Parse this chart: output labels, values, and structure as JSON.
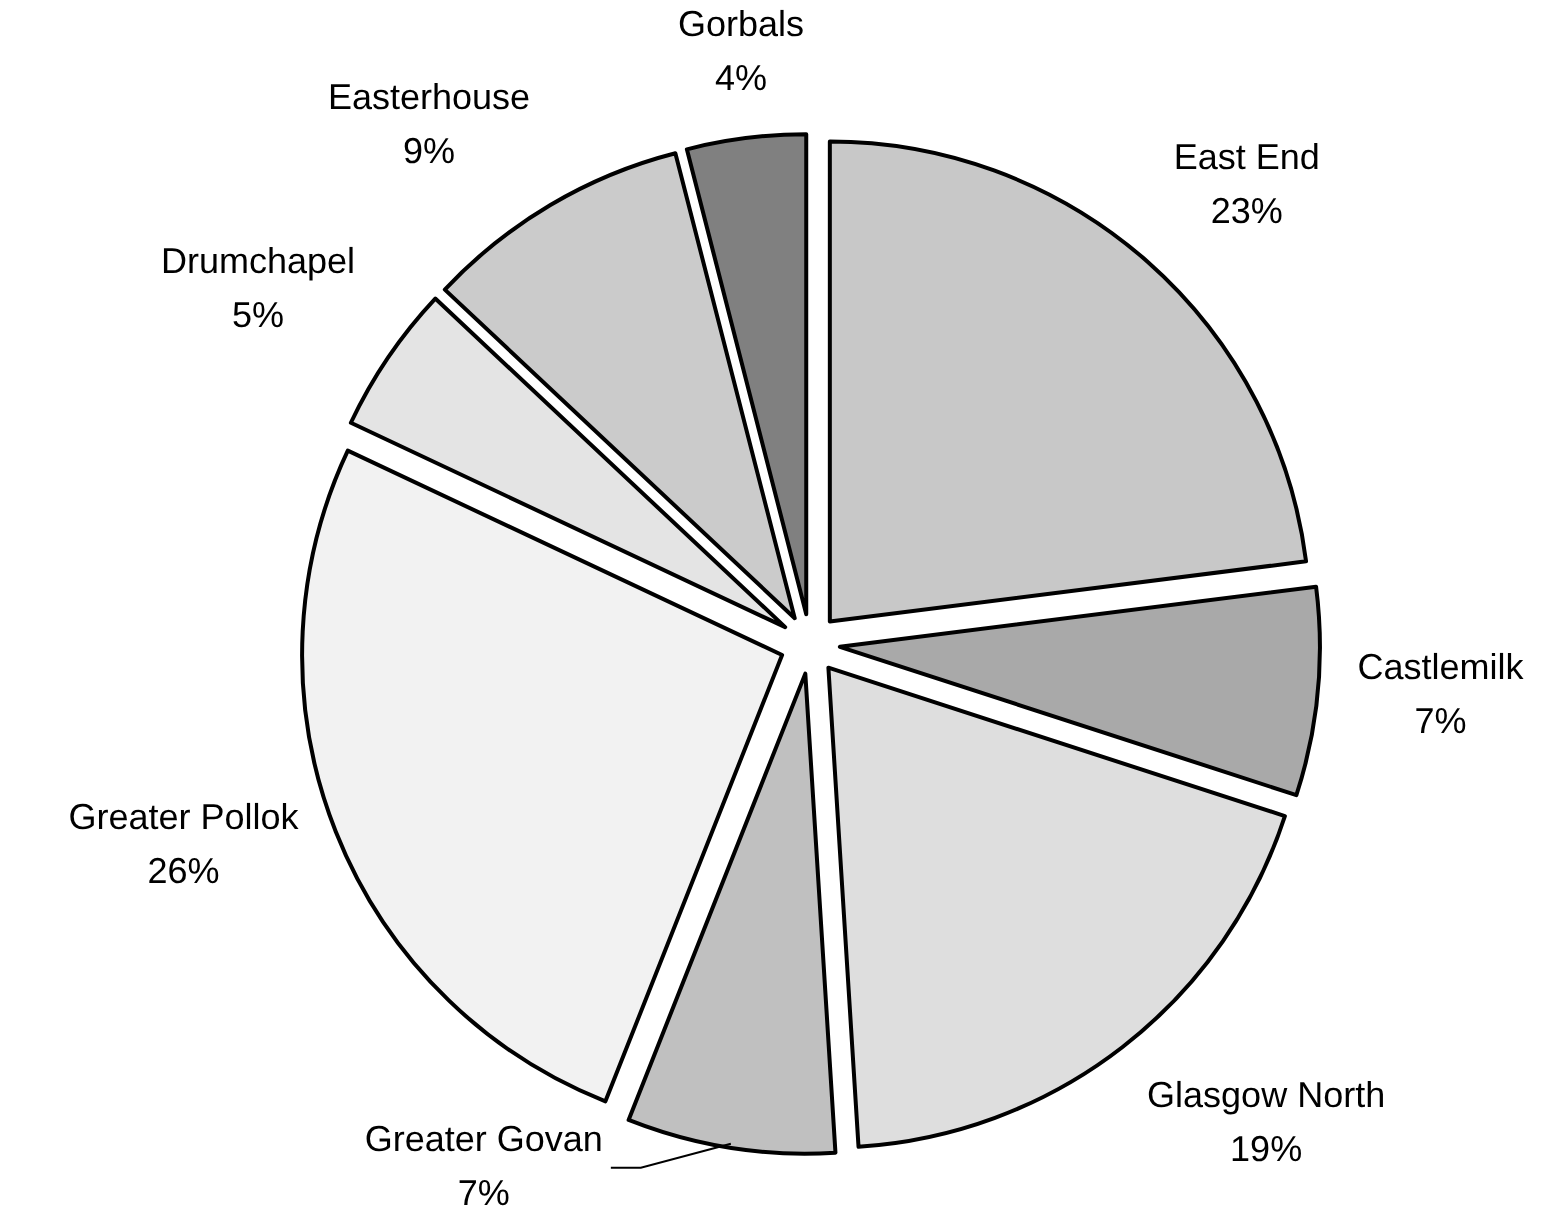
{
  "chart_data": {
    "type": "pie",
    "categories": [
      "East End",
      "Castlemilk",
      "Glasgow North",
      "Greater Govan",
      "Greater Pollok",
      "Drumchapel",
      "Easterhouse",
      "Gorbals"
    ],
    "values": [
      23,
      7,
      19,
      7,
      26,
      5,
      9,
      4
    ],
    "value_labels": [
      "23%",
      "7%",
      "19%",
      "7%",
      "26%",
      "5%",
      "9%",
      "4%"
    ],
    "colors": [
      "#c8c8c8",
      "#a9a9a9",
      "#dedede",
      "#c0c0c0",
      "#f2f2f2",
      "#e4e4e4",
      "#cbcbcb",
      "#808080"
    ]
  }
}
